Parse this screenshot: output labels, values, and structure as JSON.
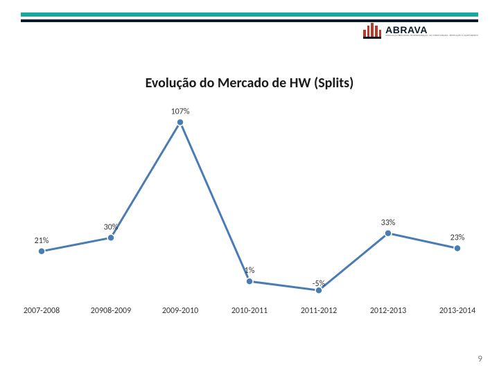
{
  "title": "Evolução do Mercado de HW (Splits)",
  "title_fontsize": 20,
  "page_number": "9",
  "logo": {
    "name": "ABRAVA",
    "subtitle": "ASSOCIAÇÃO BRASILEIRA DE REFRIGERAÇÃO, AR CONDICIONADO, VENTILAÇÃO E AQUECIMENTO"
  },
  "chart": {
    "type": "line",
    "categories": [
      "2007-2008",
      "20908-2009",
      "2009-2010",
      "2010-2011",
      "2011-2012",
      "2012-2013",
      "2013-2014"
    ],
    "values": [
      21,
      30,
      107,
      1,
      -5,
      33,
      23
    ],
    "value_labels": [
      "21%",
      "30%",
      "107%",
      "1%",
      "-5%",
      "33%",
      "23%"
    ],
    "line_color": "#4a7cb4",
    "line_width": 3,
    "marker_color": "#4a7cb4",
    "marker_border": "#ffffff",
    "marker_size": 5,
    "background_color": "#ffffff",
    "ylim": [
      -10,
      110
    ],
    "label_fontsize": 12,
    "axis_fontsize": 12
  },
  "topbar_colors": {
    "teal": "#1aa9a0",
    "dark": "#0b1a2a",
    "logo_red": "#b73a2a"
  }
}
